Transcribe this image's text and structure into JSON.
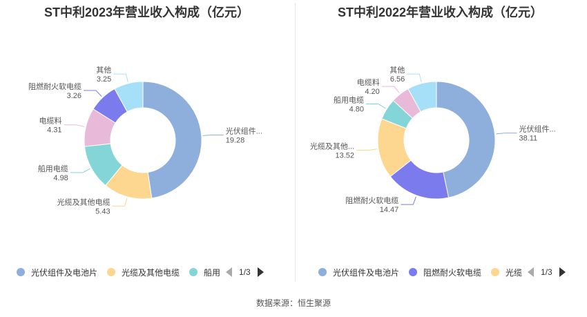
{
  "chart_data": [
    {
      "type": "pie",
      "title": "ST中利2023年营业收入构成（亿元）",
      "slices": [
        {
          "name": "光伏组件及电池片",
          "label": "光伏组件...",
          "value": 19.28,
          "value_text": "19.28",
          "color": "#8EAEDB"
        },
        {
          "name": "光缆及其他电缆",
          "label": "光缆及其他电缆",
          "value": 5.43,
          "value_text": "5.43",
          "color": "#FDD690"
        },
        {
          "name": "船用电缆",
          "label": "船用电缆",
          "value": 4.98,
          "value_text": "4.98",
          "color": "#84D5D8"
        },
        {
          "name": "电缆料",
          "label": "电缆料",
          "value": 4.31,
          "value_text": "4.31",
          "color": "#E9B9DA"
        },
        {
          "name": "阻燃耐火软电缆",
          "label": "阻燃耐火软电缆",
          "value": 3.26,
          "value_text": "3.26",
          "color": "#7B7BEE"
        },
        {
          "name": "其他",
          "label": "其他",
          "value": 3.25,
          "value_text": "3.25",
          "color": "#A6DFF8"
        }
      ],
      "legend": {
        "position": "bottom",
        "visible_items": [
          "光伏组件及电池片",
          "光缆及其他电缆",
          "船用"
        ],
        "page": "1/3"
      }
    },
    {
      "type": "pie",
      "title": "ST中利2022年营业收入构成（亿元）",
      "slices": [
        {
          "name": "光伏组件及电池片",
          "label": "光伏组件...",
          "value": 38.11,
          "value_text": "38.11",
          "color": "#8EAEDB"
        },
        {
          "name": "阻燃耐火软电缆",
          "label": "阻燃耐火软电缆",
          "value": 14.47,
          "value_text": "14.47",
          "color": "#7B7BEE"
        },
        {
          "name": "光缆及其他电缆",
          "label": "光缆及其他...",
          "value": 13.52,
          "value_text": "13.52",
          "color": "#FDD690"
        },
        {
          "name": "船用电缆",
          "label": "船用电缆",
          "value": 4.8,
          "value_text": "4.80",
          "color": "#84D5D8"
        },
        {
          "name": "电缆料",
          "label": "电缆料",
          "value": 4.2,
          "value_text": "4.20",
          "color": "#E9B9DA"
        },
        {
          "name": "其他",
          "label": "其他",
          "value": 6.56,
          "value_text": "6.56",
          "color": "#A6DFF8"
        }
      ],
      "legend": {
        "position": "bottom",
        "visible_items": [
          "光伏组件及电池片",
          "阻燃耐火软电缆",
          "光缆"
        ],
        "page": "1/3"
      }
    }
  ],
  "footer": {
    "source": "数据来源：恒生聚源"
  }
}
